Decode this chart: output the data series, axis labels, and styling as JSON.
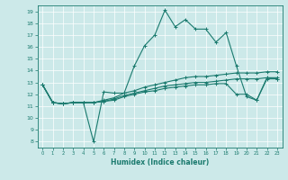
{
  "title": "",
  "xlabel": "Humidex (Indice chaleur)",
  "xlim": [
    -0.5,
    23.5
  ],
  "ylim": [
    7.5,
    19.5
  ],
  "yticks": [
    8,
    9,
    10,
    11,
    12,
    13,
    14,
    15,
    16,
    17,
    18,
    19
  ],
  "xticks": [
    0,
    1,
    2,
    3,
    4,
    5,
    6,
    7,
    8,
    9,
    10,
    11,
    12,
    13,
    14,
    15,
    16,
    17,
    18,
    19,
    20,
    21,
    22,
    23
  ],
  "bg_color": "#cce9e9",
  "line_color": "#1a7a6e",
  "grid_color": "#ffffff",
  "lines": [
    {
      "x": [
        0,
        1,
        2,
        3,
        4,
        5,
        6,
        7,
        8,
        9,
        10,
        11,
        12,
        13,
        14,
        15,
        16,
        17,
        18,
        19,
        20,
        21,
        22,
        23
      ],
      "y": [
        12.8,
        11.3,
        11.2,
        11.3,
        11.3,
        8.0,
        12.2,
        12.1,
        12.1,
        14.4,
        16.1,
        17.0,
        19.1,
        17.7,
        18.3,
        17.5,
        17.5,
        16.4,
        17.2,
        14.4,
        11.8,
        11.5,
        13.4,
        13.3
      ]
    },
    {
      "x": [
        0,
        1,
        2,
        3,
        4,
        5,
        6,
        7,
        8,
        9,
        10,
        11,
        12,
        13,
        14,
        15,
        16,
        17,
        18,
        19,
        20,
        21,
        22,
        23
      ],
      "y": [
        12.8,
        11.3,
        11.2,
        11.3,
        11.3,
        11.3,
        11.5,
        11.7,
        12.1,
        12.3,
        12.6,
        12.8,
        13.0,
        13.2,
        13.4,
        13.5,
        13.5,
        13.6,
        13.7,
        13.8,
        13.8,
        13.8,
        13.9,
        13.9
      ]
    },
    {
      "x": [
        0,
        1,
        2,
        3,
        4,
        5,
        6,
        7,
        8,
        9,
        10,
        11,
        12,
        13,
        14,
        15,
        16,
        17,
        18,
        19,
        20,
        21,
        22,
        23
      ],
      "y": [
        12.8,
        11.3,
        11.2,
        11.3,
        11.3,
        11.3,
        11.4,
        11.6,
        11.9,
        12.1,
        12.3,
        12.5,
        12.7,
        12.8,
        12.9,
        13.0,
        13.0,
        13.1,
        13.2,
        13.3,
        13.3,
        13.3,
        13.4,
        13.4
      ]
    },
    {
      "x": [
        0,
        1,
        2,
        3,
        4,
        5,
        6,
        7,
        8,
        9,
        10,
        11,
        12,
        13,
        14,
        15,
        16,
        17,
        18,
        19,
        20,
        21,
        22,
        23
      ],
      "y": [
        12.8,
        11.3,
        11.2,
        11.3,
        11.3,
        11.3,
        11.4,
        11.5,
        11.8,
        12.0,
        12.2,
        12.3,
        12.5,
        12.6,
        12.7,
        12.8,
        12.8,
        12.9,
        12.9,
        12.0,
        12.0,
        11.5,
        13.3,
        13.3
      ]
    }
  ]
}
